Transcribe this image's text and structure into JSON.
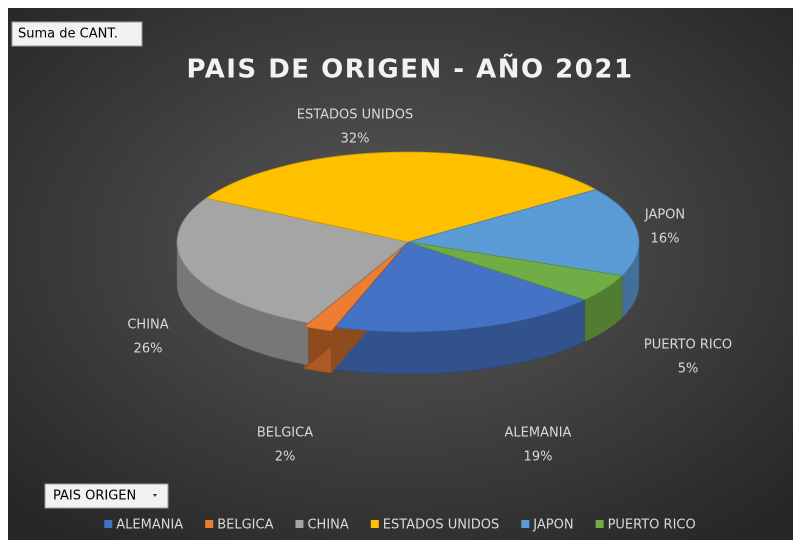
{
  "chart_data": {
    "type": "pie",
    "title": "PAIS DE ORIGEN - AÑO 2021",
    "value_field": "Suma de CANT.",
    "category_field": "PAIS ORIGEN",
    "categories": [
      "ALEMANIA",
      "BELGICA",
      "CHINA",
      "ESTADOS UNIDOS",
      "JAPON",
      "PUERTO RICO"
    ],
    "values": [
      19,
      2,
      26,
      32,
      16,
      5
    ],
    "value_labels": [
      "19%",
      "2%",
      "26%",
      "32%",
      "16%",
      "5%"
    ],
    "colors": [
      "#4472c4",
      "#ed7d31",
      "#a5a5a5",
      "#ffc000",
      "#5b9bd5",
      "#70ad47"
    ],
    "legend": "bottom"
  }
}
